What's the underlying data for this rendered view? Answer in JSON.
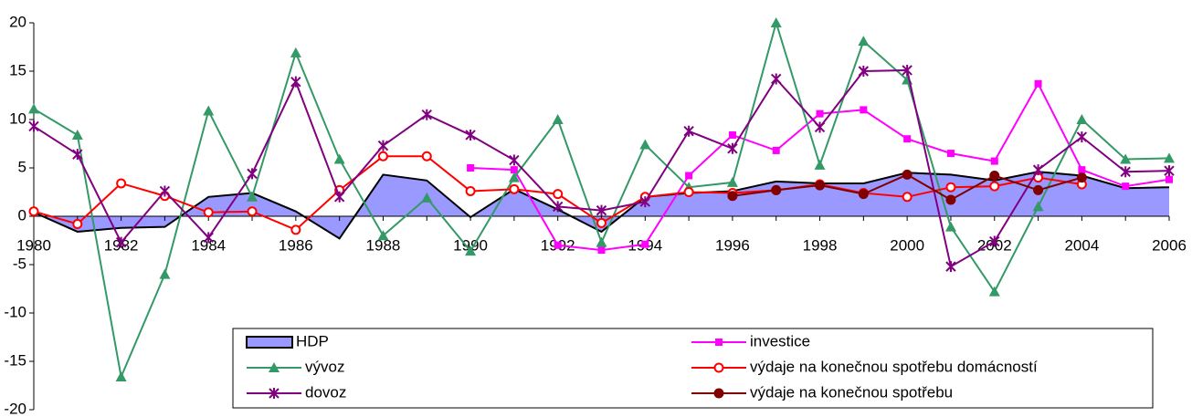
{
  "chart_data": {
    "type": "line",
    "categories": [
      "1980",
      null,
      "1982",
      null,
      "1984",
      null,
      "1986",
      null,
      "1988",
      null,
      "1990",
      null,
      "1992",
      null,
      "1994",
      null,
      "1996",
      null,
      "1998",
      null,
      "2000",
      null,
      "2002",
      null,
      "2004",
      null,
      "2006"
    ],
    "ylim": [
      -20,
      20
    ],
    "yticks": [
      -20,
      -15,
      -10,
      -5,
      0,
      5,
      10,
      15,
      20
    ],
    "series": [
      {
        "name": "HDP",
        "type": "area",
        "color": "#9999ff",
        "values": [
          0.4,
          -1.6,
          -1.2,
          -1.1,
          2.0,
          2.4,
          0.5,
          -2.3,
          4.3,
          3.7,
          -0.1,
          2.8,
          0.7,
          -1.6,
          2.0,
          2.4,
          2.6,
          3.6,
          3.4,
          3.4,
          4.5,
          4.3,
          3.7,
          4.6,
          4.2,
          2.9,
          3.0
        ]
      },
      {
        "name": "investice",
        "color": "#ff00ff",
        "marker": "square",
        "values": [
          null,
          null,
          null,
          null,
          null,
          null,
          null,
          null,
          null,
          null,
          5.0,
          4.8,
          -3.0,
          -3.5,
          -2.9,
          4.2,
          8.4,
          6.8,
          10.6,
          11.0,
          8.0,
          6.5,
          5.7,
          13.7,
          4.8,
          3.1,
          3.8
        ]
      },
      {
        "name": "vývoz",
        "color": "#339966",
        "marker": "triangle",
        "values": [
          11.1,
          8.4,
          -16.6,
          -6.0,
          10.9,
          2.0,
          16.9,
          5.9,
          -2.0,
          1.9,
          -3.6,
          4.0,
          10.0,
          -2.7,
          7.4,
          3.0,
          3.5,
          20.0,
          5.3,
          18.1,
          14.1,
          -1.1,
          -7.8,
          1.0,
          10.0,
          5.9,
          6.0
        ]
      },
      {
        "name": "výdaje na konečnou spotřebu domácností",
        "color": "#ff0000",
        "marker": "open-circle",
        "values": [
          0.5,
          -0.8,
          3.4,
          2.1,
          0.4,
          0.5,
          -1.4,
          2.7,
          6.2,
          6.2,
          2.6,
          2.8,
          2.3,
          -0.7,
          2.0,
          2.5,
          2.4,
          2.7,
          3.3,
          2.4,
          2.0,
          3.0,
          3.1,
          4.0,
          3.3,
          null,
          null
        ]
      },
      {
        "name": "dovoz",
        "color": "#800080",
        "marker": "star",
        "values": [
          9.3,
          6.4,
          -2.7,
          2.6,
          -2.2,
          4.4,
          13.9,
          2.0,
          7.3,
          10.5,
          8.4,
          5.8,
          1.0,
          0.6,
          1.5,
          8.8,
          7.0,
          14.2,
          9.2,
          15.0,
          15.1,
          -5.2,
          -2.6,
          4.8,
          8.2,
          4.6,
          4.7
        ]
      },
      {
        "name": "výdaje na konečnou spotřebu",
        "color": "#800000",
        "marker": "circle",
        "values": [
          null,
          null,
          null,
          null,
          null,
          null,
          null,
          null,
          null,
          null,
          null,
          null,
          null,
          null,
          null,
          null,
          2.1,
          2.7,
          3.2,
          2.3,
          4.3,
          1.7,
          4.2,
          2.7,
          4.0,
          null,
          null
        ]
      }
    ]
  }
}
